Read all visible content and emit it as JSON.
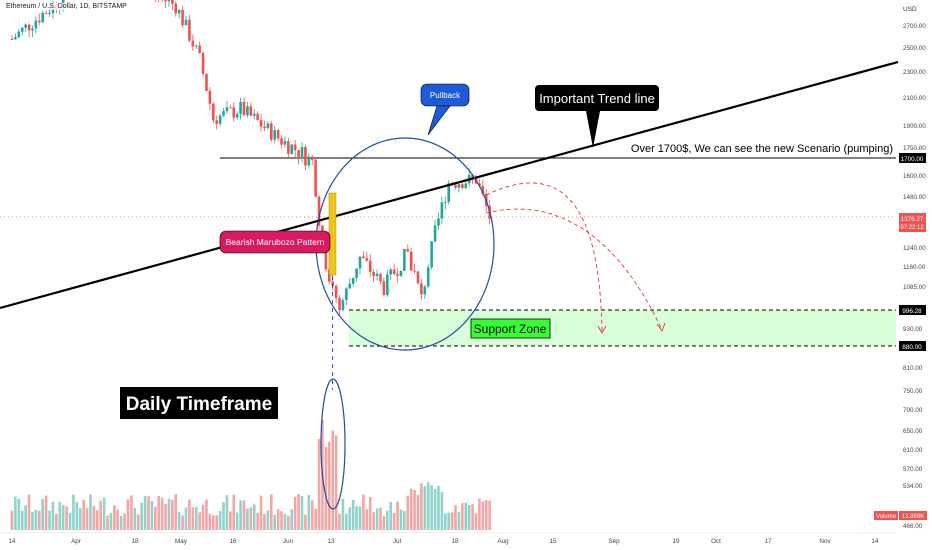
{
  "header": {
    "symbol_line": "Ethereum / U.S. Dollar, 1D, BITSTAMP"
  },
  "price_scale": {
    "currency": "USD",
    "ticks": [
      "2700.00",
      "2500.00",
      "2300.00",
      "2100.00",
      "1900.00",
      "1750.00",
      "1600.00",
      "1480.00",
      "1240.00",
      "1160.00",
      "1085.00",
      "930.00",
      "810.00",
      "750.00",
      "700.00",
      "650.00",
      "610.00",
      "570.00",
      "534.00",
      "466.00"
    ],
    "badges": {
      "level_1700": "1700.00",
      "current_price": "1376.27",
      "countdown": "07:22:12",
      "support_top": "996.28",
      "support_bottom": "880.00",
      "volume_label": "Volume",
      "volume_value": "13.869K"
    }
  },
  "time_axis": {
    "labels": [
      "14",
      "Apr",
      "18",
      "May",
      "16",
      "Jun",
      "13",
      "Jul",
      "18",
      "Aug",
      "15",
      "Sep",
      "19",
      "Oct",
      "17",
      "Nov",
      "14"
    ]
  },
  "annotations": {
    "pullback": "Pullback",
    "trend_line": "Important Trend line",
    "scenario": "Over 1700$, We can see the new Scenario (pumping)",
    "marubozu": "Bearish Marubozo Pattern",
    "support_zone": "Support Zone",
    "timeframe": "Daily Timeframe"
  },
  "colors": {
    "up": "#26a69a",
    "down": "#ef5350",
    "volume_up": "#8fd3cc",
    "volume_down": "#f4a6a4",
    "support_fill": "#ccffcc",
    "circle": "#1e50a0",
    "marubozu_label": "#d81b60",
    "pullback_label": "#1e5bd8",
    "support_label": "#33ff33",
    "price_badge": "#ef5350",
    "marubozu_candle": "#f0c419"
  },
  "chart_data": {
    "type": "candlestick",
    "title": "Ethereum / U.S. Dollar, 1D, BITSTAMP",
    "x_range": [
      "2022-03-14",
      "2022-11-19"
    ],
    "y_unit": "USD",
    "y_scale": "log",
    "ylim": [
      750,
      3000
    ],
    "price_path": [
      {
        "date": "2022-03-14",
        "close": 2580
      },
      {
        "date": "2022-03-28",
        "close": 2950
      },
      {
        "date": "2022-04-03",
        "close": 3400
      },
      {
        "date": "2022-04-20",
        "close": 3100
      },
      {
        "date": "2022-05-01",
        "close": 2900
      },
      {
        "date": "2022-05-08",
        "close": 2400
      },
      {
        "date": "2022-05-12",
        "close": 1950
      },
      {
        "date": "2022-05-20",
        "close": 2020
      },
      {
        "date": "2022-06-01",
        "close": 1800
      },
      {
        "date": "2022-06-10",
        "close": 1680
      },
      {
        "date": "2022-06-13",
        "close": 1220
      },
      {
        "date": "2022-06-18",
        "close": 1000
      },
      {
        "date": "2022-06-24",
        "close": 1200
      },
      {
        "date": "2022-07-01",
        "close": 1080
      },
      {
        "date": "2022-07-08",
        "close": 1220
      },
      {
        "date": "2022-07-12",
        "close": 1040
      },
      {
        "date": "2022-07-20",
        "close": 1560
      },
      {
        "date": "2022-07-28",
        "close": 1580
      },
      {
        "date": "2022-08-01",
        "close": 1376.27
      }
    ],
    "bearish_marubozu": {
      "date": "2022-06-13",
      "open": 1440,
      "close": 1210
    },
    "trend_line": {
      "from": {
        "date": "2022-02-01",
        "price": 900
      },
      "to": {
        "date": "2022-11-25",
        "price": 2400
      }
    },
    "horizontal_levels": [
      {
        "label": "1700.00",
        "price": 1700
      }
    ],
    "support_zone": {
      "top": 996.28,
      "bottom": 880
    },
    "last_price": 1376.27,
    "projected_paths": [
      {
        "points": [
          {
            "date": "2022-08-02",
            "price": 1600
          },
          {
            "date": "2022-09-05",
            "price": 1500
          },
          {
            "date": "2022-09-10",
            "price": 930
          }
        ]
      },
      {
        "points": [
          {
            "date": "2022-08-02",
            "price": 1420
          },
          {
            "date": "2022-09-15",
            "price": 1300
          },
          {
            "date": "2022-10-05",
            "price": 930
          }
        ]
      }
    ],
    "volume_series": {
      "unit": "K",
      "last": 13.869,
      "peak": {
        "date": "2022-06-13"
      }
    },
    "legend": "none",
    "grid": false
  }
}
